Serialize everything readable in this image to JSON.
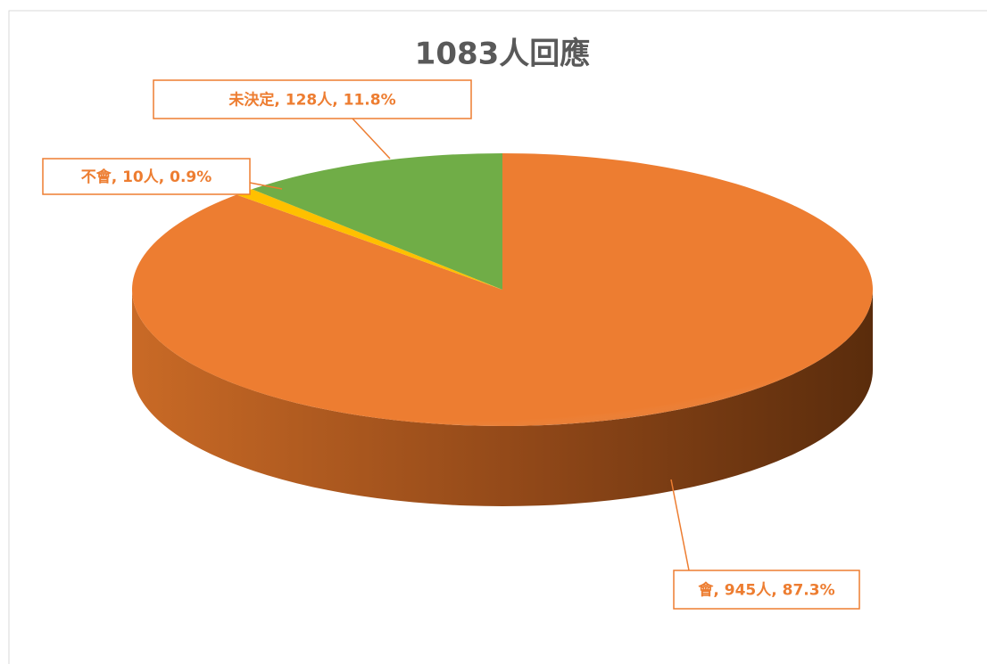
{
  "chart_data": {
    "type": "pie",
    "title": "1083人回應",
    "values": [
      945,
      10,
      128
    ],
    "value_labels": [
      "會, 945人, 87.3%",
      "不會, 10人, 0.9%",
      "未決定, 128人, 11.8%"
    ],
    "colors": [
      "#ed7d31",
      "#ffc000",
      "#70ad47"
    ]
  }
}
